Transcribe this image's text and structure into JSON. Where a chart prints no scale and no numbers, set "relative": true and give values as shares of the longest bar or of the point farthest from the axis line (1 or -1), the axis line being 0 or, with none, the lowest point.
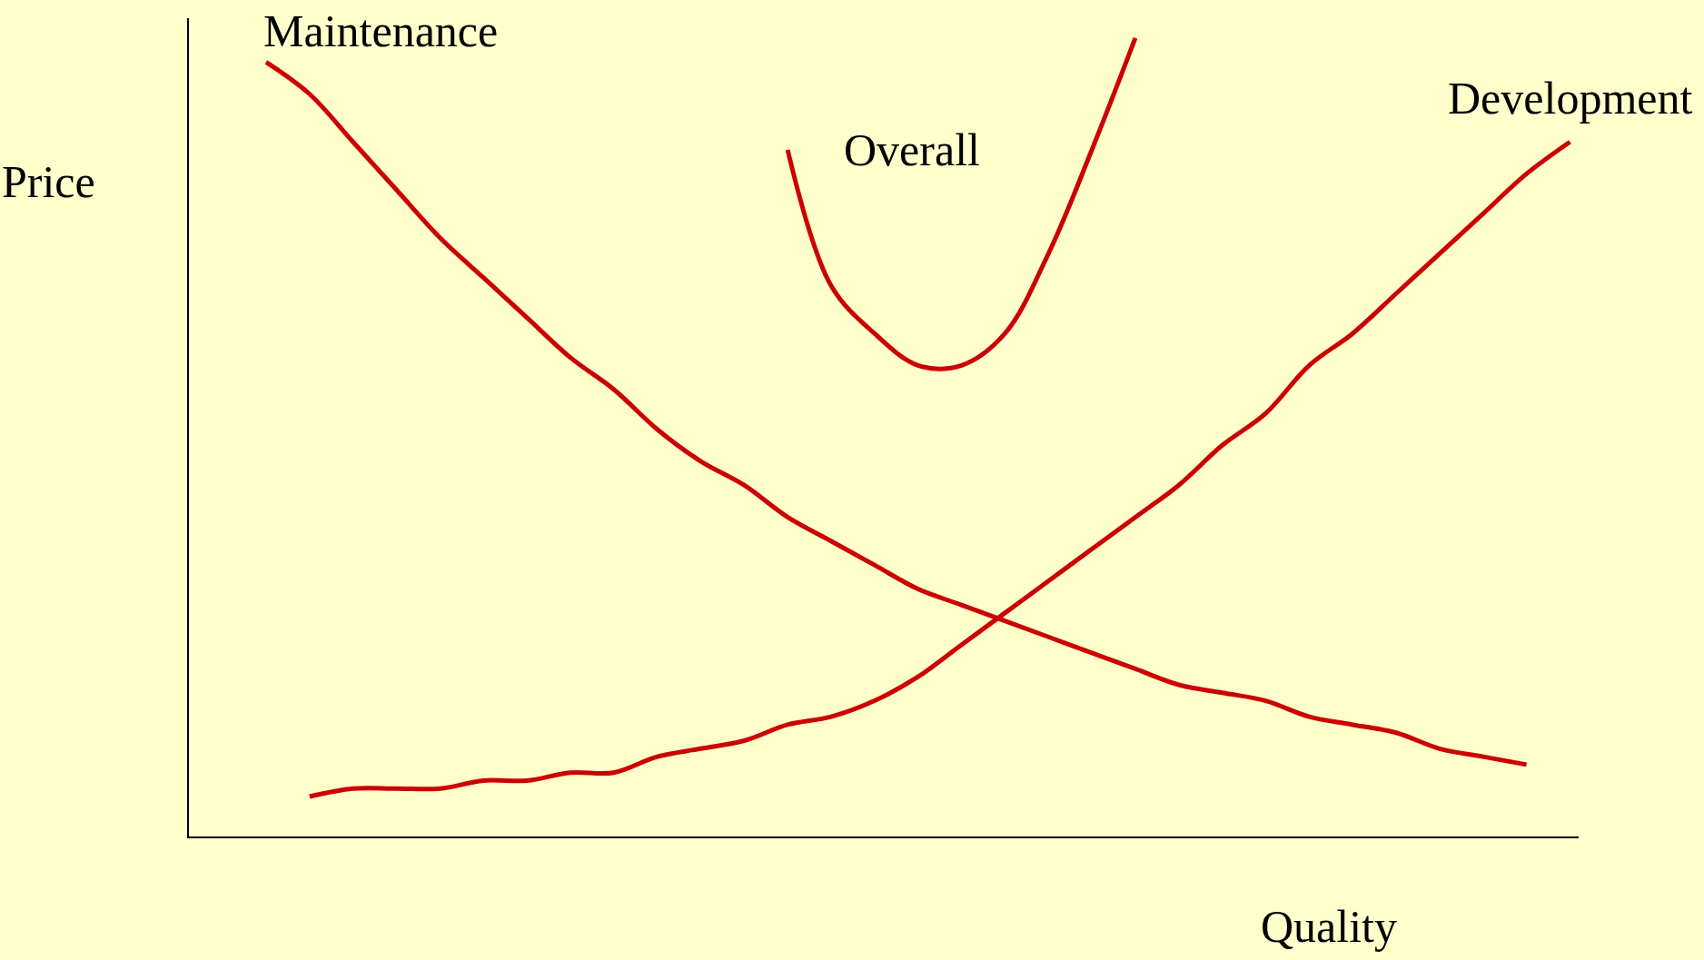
{
  "chart_data": {
    "type": "line",
    "relative": true,
    "xlabel": "Quality",
    "ylabel": "Price",
    "grid": false,
    "legend": false,
    "marker": "none",
    "line_style": "solid",
    "categories": [
      null,
      null,
      null,
      null,
      null,
      null,
      null,
      null,
      null,
      null,
      null,
      null,
      null,
      null,
      null,
      null,
      null,
      null,
      null,
      null,
      null,
      null,
      null,
      null,
      null,
      null,
      null,
      null,
      null,
      null,
      null
    ],
    "series": [
      {
        "name": "Maintenance",
        "color": "#cc0000",
        "values": [
          0.97,
          0.93,
          0.87,
          0.81,
          0.75,
          0.7,
          0.65,
          0.6,
          0.56,
          0.51,
          0.47,
          0.44,
          0.4,
          0.37,
          0.34,
          0.31,
          0.29,
          0.27,
          0.25,
          0.23,
          0.21,
          0.19,
          0.18,
          0.17,
          0.15,
          0.14,
          0.13,
          0.11,
          0.1,
          0.09,
          null
        ]
      },
      {
        "name": "Overall",
        "color": "#cc0000",
        "values": [
          null,
          null,
          null,
          null,
          null,
          null,
          null,
          null,
          null,
          null,
          null,
          null,
          0.86,
          0.69,
          0.63,
          0.59,
          0.59,
          0.63,
          0.73,
          0.86,
          1.0,
          null,
          null,
          null,
          null,
          null,
          null,
          null,
          null,
          null,
          null
        ]
      },
      {
        "name": "Development",
        "color": "#cc0000",
        "values": [
          null,
          0.05,
          0.06,
          0.06,
          0.06,
          0.07,
          0.07,
          0.08,
          0.08,
          0.1,
          0.11,
          0.12,
          0.14,
          0.15,
          0.17,
          0.2,
          0.24,
          0.28,
          0.32,
          0.36,
          0.4,
          0.44,
          0.49,
          0.53,
          0.59,
          0.63,
          0.68,
          0.73,
          0.78,
          0.83,
          0.87
        ]
      }
    ]
  }
}
